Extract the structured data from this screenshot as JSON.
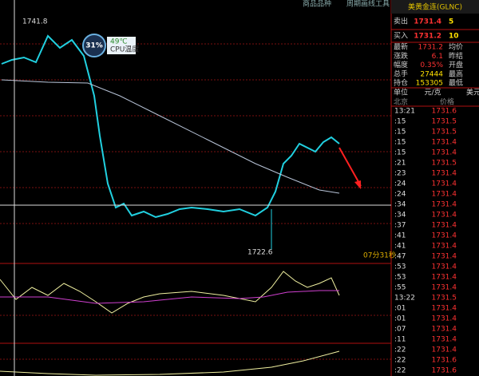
{
  "toolbar": [
    "商品品种",
    "周期",
    "画线工具"
  ],
  "chart": {
    "high_label": "1741.8",
    "low_label": "1722.6",
    "countdown": "07分31秒",
    "cpu": {
      "usage": "31%",
      "temp": "49℃",
      "label": "CPU温度"
    }
  },
  "quote": {
    "title": "美黄金连(GLNC)",
    "sell": {
      "label": "卖出",
      "price": "1731.4",
      "volume": "5"
    },
    "buy": {
      "label": "买入",
      "price": "1731.2",
      "volume": "10"
    },
    "stats": [
      [
        "最新",
        "1731.2",
        "均价"
      ],
      [
        "涨跌",
        "6.1",
        "昨结"
      ],
      [
        "幅度",
        "0.35%",
        "开盘"
      ],
      [
        "总手",
        "27444",
        "最高"
      ],
      [
        "持仓",
        "153305",
        "最低"
      ]
    ],
    "unit": [
      "单位",
      "元/克",
      "美元"
    ],
    "header": [
      "北京",
      "价格"
    ]
  },
  "ticks": [
    [
      "13:21",
      "1731.6"
    ],
    [
      ":15",
      "1731.5"
    ],
    [
      ":15",
      "1731.5"
    ],
    [
      ":15",
      "1731.4"
    ],
    [
      ":15",
      "1731.4"
    ],
    [
      ":21",
      "1731.5"
    ],
    [
      ":23",
      "1731.4"
    ],
    [
      ":24",
      "1731.4"
    ],
    [
      ":24",
      "1731.4"
    ],
    [
      ":34",
      "1731.4"
    ],
    [
      ":34",
      "1731.4"
    ],
    [
      ":37",
      "1731.4"
    ],
    [
      ":41",
      "1731.4"
    ],
    [
      ":41",
      "1731.4"
    ],
    [
      ":47",
      "1731.4"
    ],
    [
      ":53",
      "1731.4"
    ],
    [
      ":53",
      "1731.4"
    ],
    [
      ":55",
      "1731.4"
    ],
    [
      "13:22",
      "1731.5"
    ],
    [
      ":01",
      "1731.4"
    ],
    [
      ":01",
      "1731.4"
    ],
    [
      ":07",
      "1731.4"
    ],
    [
      ":11",
      "1731.4"
    ],
    [
      ":22",
      "1731.4"
    ],
    [
      ":22",
      "1731.6"
    ],
    [
      ":22",
      "1731.6"
    ]
  ]
}
